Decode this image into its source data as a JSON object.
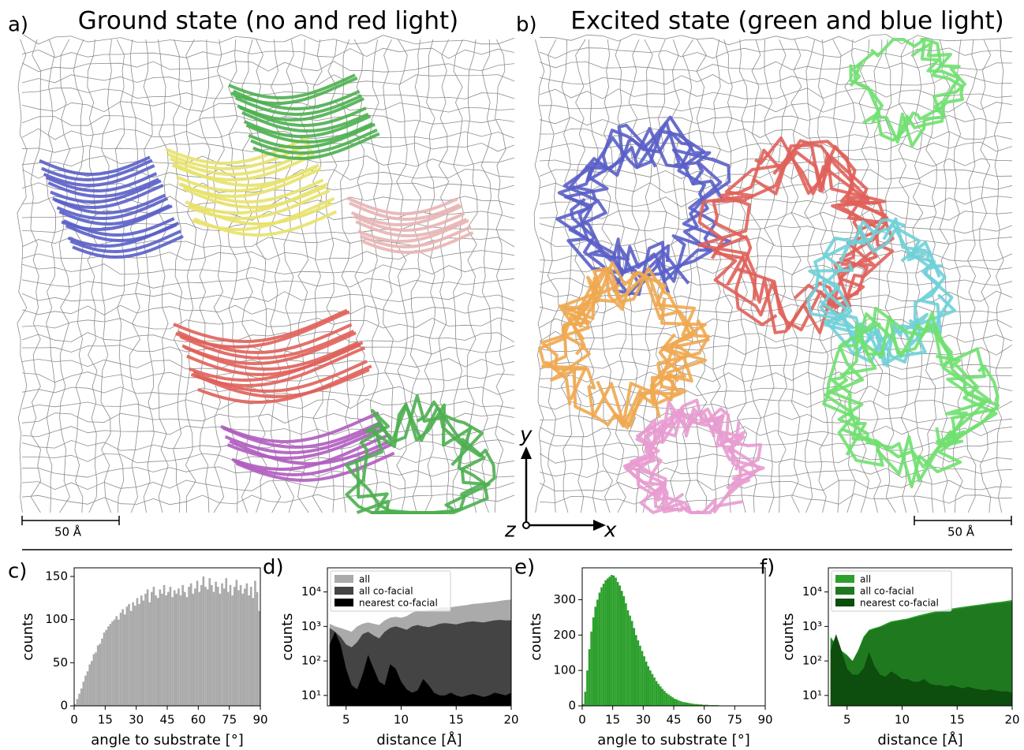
{
  "panels": [
    {
      "label": "a)",
      "title": "Ground state (no and red light)",
      "scale_bar": "50 Å"
    },
    {
      "label": "b)",
      "title": "Excited state (green and blue light)",
      "scale_bar": "50 Å"
    }
  ],
  "axes_labels": {
    "x": "x",
    "y": "y",
    "z": "z"
  },
  "chart_data": [
    {
      "type": "histogram",
      "label": "c)",
      "xlabel": "angle to substrate [°]",
      "ylabel": "counts",
      "color": "#aaaaaa",
      "bins": [
        0,
        1,
        2,
        3,
        4,
        5,
        6,
        7,
        8,
        9,
        10,
        11,
        12,
        13,
        14,
        15,
        16,
        17,
        18,
        19,
        20,
        21,
        22,
        23,
        24,
        25,
        26,
        27,
        28,
        29,
        30,
        31,
        32,
        33,
        34,
        35,
        36,
        37,
        38,
        39,
        40,
        41,
        42,
        43,
        44,
        45,
        46,
        47,
        48,
        49,
        50,
        51,
        52,
        53,
        54,
        55,
        56,
        57,
        58,
        59,
        60,
        61,
        62,
        63,
        64,
        65,
        66,
        67,
        68,
        69,
        70,
        71,
        72,
        73,
        74,
        75,
        76,
        77,
        78,
        79,
        80,
        81,
        82,
        83,
        84,
        85,
        86,
        87,
        88,
        89,
        90
      ],
      "values": [
        2,
        8,
        14,
        20,
        28,
        35,
        40,
        48,
        52,
        60,
        62,
        70,
        72,
        78,
        85,
        88,
        92,
        95,
        98,
        100,
        104,
        100,
        108,
        112,
        106,
        115,
        118,
        110,
        120,
        116,
        125,
        118,
        128,
        122,
        130,
        135,
        120,
        132,
        138,
        128,
        125,
        135,
        130,
        140,
        128,
        132,
        138,
        126,
        134,
        130,
        136,
        128,
        140,
        132,
        126,
        138,
        142,
        130,
        136,
        145,
        132,
        140,
        150,
        138,
        135,
        148,
        140,
        132,
        144,
        138,
        130,
        142,
        136,
        148,
        132,
        140,
        128,
        138,
        146,
        134,
        140,
        130,
        136,
        142,
        128,
        138,
        125,
        145,
        132,
        110
      ],
      "xlim": [
        0,
        90
      ],
      "xticks": [
        0,
        15,
        30,
        45,
        60,
        75,
        90
      ],
      "ylim": [
        0,
        160
      ],
      "yticks": [
        0,
        50,
        100,
        150
      ]
    },
    {
      "type": "area",
      "label": "d)",
      "xlabel": "distance [Å]",
      "ylabel": "counts",
      "log_y": true,
      "legend": "upper left",
      "x": [
        3.5,
        4,
        4.5,
        5,
        5.5,
        6,
        6.5,
        7,
        7.5,
        8,
        8.5,
        9,
        9.5,
        10,
        10.5,
        11,
        11.5,
        12,
        12.5,
        13,
        13.5,
        14,
        14.5,
        15,
        15.5,
        16,
        16.5,
        17,
        17.5,
        18,
        18.5,
        19,
        19.5,
        20
      ],
      "series": [
        {
          "name": "all",
          "color": "#aaaaaa",
          "values": [
            1200,
            1000,
            900,
            800,
            700,
            1000,
            1200,
            1300,
            1200,
            1100,
            1500,
            1800,
            1900,
            1800,
            2000,
            2500,
            2800,
            2800,
            2900,
            3200,
            3500,
            3600,
            3600,
            3800,
            4000,
            4200,
            4500,
            4600,
            4800,
            5000,
            5200,
            5500,
            5800,
            6000
          ]
        },
        {
          "name": "all co-facial",
          "color": "#444444",
          "values": [
            900,
            700,
            500,
            300,
            250,
            350,
            600,
            700,
            550,
            450,
            700,
            900,
            1000,
            900,
            800,
            1000,
            1100,
            1000,
            950,
            1050,
            1200,
            1250,
            1200,
            1150,
            1250,
            1350,
            1400,
            1350,
            1300,
            1400,
            1500,
            1550,
            1500,
            1500
          ]
        },
        {
          "name": "nearest co-facial",
          "color": "#000000",
          "values": [
            300,
            700,
            300,
            60,
            20,
            15,
            40,
            150,
            60,
            25,
            20,
            80,
            60,
            25,
            15,
            12,
            14,
            30,
            20,
            12,
            10,
            10,
            12,
            10,
            9,
            10,
            11,
            10,
            9,
            10,
            12,
            11,
            10,
            12
          ]
        }
      ],
      "xlim": [
        3.3,
        20
      ],
      "xticks": [
        5,
        10,
        15,
        20
      ],
      "ylim": [
        5,
        50000
      ],
      "yticks": [
        {
          "value": 10,
          "label": "10¹"
        },
        {
          "value": 100,
          "label": "10²"
        },
        {
          "value": 1000,
          "label": "10³"
        },
        {
          "value": 10000,
          "label": "10⁴"
        }
      ]
    },
    {
      "type": "histogram",
      "label": "e)",
      "xlabel": "angle to substrate [°]",
      "ylabel": "counts",
      "color": "#2ca02c",
      "bins": [
        0,
        1,
        2,
        3,
        4,
        5,
        6,
        7,
        8,
        9,
        10,
        11,
        12,
        13,
        14,
        15,
        16,
        17,
        18,
        19,
        20,
        21,
        22,
        23,
        24,
        25,
        26,
        27,
        28,
        29,
        30,
        31,
        32,
        33,
        34,
        35,
        36,
        37,
        38,
        39,
        40,
        41,
        42,
        43,
        44,
        45,
        46,
        47,
        48,
        49,
        50,
        51,
        52,
        53,
        54,
        55,
        56,
        57,
        58,
        59,
        60,
        61,
        62,
        63,
        64,
        65,
        66,
        67,
        68,
        69,
        70,
        71,
        72,
        73,
        74,
        75,
        76,
        77,
        78,
        79,
        80,
        81,
        82,
        83,
        84,
        85,
        86,
        87,
        88,
        89,
        90
      ],
      "values": [
        5,
        40,
        100,
        160,
        210,
        250,
        280,
        300,
        320,
        335,
        345,
        355,
        360,
        365,
        370,
        368,
        362,
        350,
        340,
        325,
        310,
        290,
        270,
        255,
        240,
        220,
        200,
        185,
        170,
        155,
        140,
        125,
        112,
        100,
        90,
        80,
        70,
        62,
        55,
        48,
        42,
        36,
        32,
        28,
        24,
        20,
        18,
        15,
        13,
        11,
        10,
        9,
        8,
        7,
        6,
        5,
        5,
        4,
        4,
        3,
        3,
        3,
        2,
        2,
        2,
        2,
        2,
        1,
        1,
        1,
        1,
        1,
        1,
        1,
        1,
        1,
        1,
        1,
        1,
        1,
        1,
        1,
        0,
        1,
        0,
        1,
        0,
        0,
        1,
        0
      ],
      "xlim": [
        0,
        90
      ],
      "xticks": [
        0,
        15,
        30,
        45,
        60,
        75,
        90
      ],
      "ylim": [
        0,
        390
      ],
      "yticks": [
        0,
        100,
        200,
        300
      ]
    },
    {
      "type": "area",
      "label": "f)",
      "xlabel": "distance [Å]",
      "ylabel": "counts",
      "log_y": true,
      "legend": "upper left",
      "x": [
        3.5,
        4,
        4.5,
        5,
        5.5,
        6,
        6.5,
        7,
        7.5,
        8,
        8.5,
        9,
        9.5,
        10,
        10.5,
        11,
        11.5,
        12,
        12.5,
        13,
        13.5,
        14,
        14.5,
        15,
        15.5,
        16,
        16.5,
        17,
        17.5,
        18,
        18.5,
        19,
        19.5,
        20
      ],
      "series": [
        {
          "name": "all",
          "color": "#2ca02c",
          "values": [
            500,
            300,
            200,
            150,
            100,
            200,
            500,
            800,
            900,
            1000,
            1200,
            1400,
            1500,
            1600,
            1700,
            1900,
            2100,
            2300,
            2500,
            2700,
            2900,
            3100,
            3300,
            3500,
            3700,
            3900,
            4100,
            4300,
            4500,
            4800,
            5000,
            5200,
            5500,
            5800
          ]
        },
        {
          "name": "all co-facial",
          "color": "#1f7a1f",
          "values": [
            450,
            280,
            180,
            140,
            100,
            200,
            480,
            750,
            850,
            950,
            1100,
            1300,
            1400,
            1500,
            1600,
            1750,
            1900,
            2100,
            2300,
            2500,
            2700,
            2900,
            3000,
            3200,
            3400,
            3600,
            3800,
            4000,
            4200,
            4400,
            4600,
            4800,
            5000,
            5200
          ]
        },
        {
          "name": "nearest co-facial",
          "color": "#0d4d0d",
          "values": [
            200,
            600,
            200,
            60,
            40,
            40,
            60,
            180,
            70,
            40,
            35,
            50,
            40,
            30,
            30,
            25,
            25,
            30,
            22,
            20,
            20,
            18,
            20,
            18,
            16,
            18,
            16,
            15,
            14,
            15,
            14,
            13,
            13,
            12
          ]
        }
      ],
      "xlim": [
        3.3,
        20
      ],
      "xticks": [
        5,
        10,
        15,
        20
      ],
      "ylim": [
        5,
        50000
      ],
      "yticks": [
        {
          "value": 10,
          "label": "10¹"
        },
        {
          "value": 100,
          "label": "10²"
        },
        {
          "value": 1000,
          "label": "10³"
        },
        {
          "value": 10000,
          "label": "10⁴"
        }
      ]
    }
  ]
}
